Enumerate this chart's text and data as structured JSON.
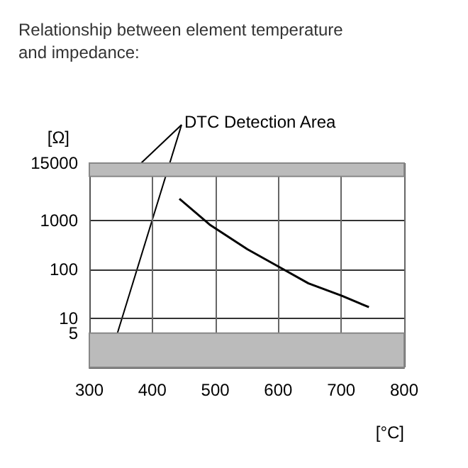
{
  "chart_data": {
    "type": "line",
    "title": "Relationship between element temperature and impedance:",
    "xlabel": "[°C]",
    "ylabel": "[Ω]",
    "x": [
      443,
      491,
      551,
      603,
      648,
      701,
      744
    ],
    "series": [
      {
        "color": "#000000",
        "values": [
          2800,
          830,
          260,
          110,
          52,
          29,
          17
        ]
      }
    ],
    "xlim": [
      300,
      800
    ],
    "xticks": [
      300,
      400,
      500,
      600,
      700,
      800
    ],
    "ylim": [
      1,
      15000
    ],
    "yticks": [
      5,
      10,
      100,
      1000,
      15000
    ],
    "log": true,
    "grid": true,
    "marker": "none",
    "line_style": "solid",
    "bands": [
      {
        "axis": "y",
        "from": 8000,
        "to": 15000,
        "color": "#bbbbbb"
      },
      {
        "axis": "y",
        "from": 1,
        "to": 5,
        "color": "#bbbbbb"
      }
    ],
    "annotations": [
      "DTC Detection Area"
    ]
  }
}
